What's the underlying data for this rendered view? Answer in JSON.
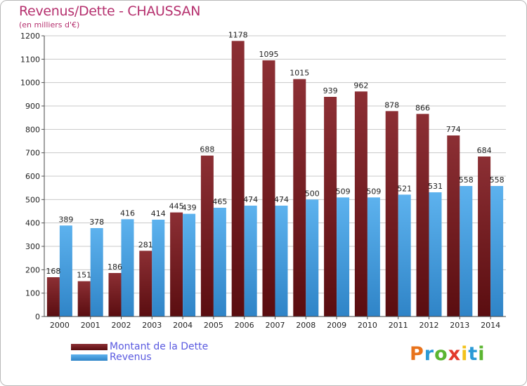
{
  "header": {
    "title": "Revenus/Dette - CHAUSSAN",
    "subtitle": "(en milliers d'€)"
  },
  "chart_data": {
    "type": "bar",
    "categories": [
      "2000",
      "2001",
      "2002",
      "2003",
      "2004",
      "2005",
      "2006",
      "2007",
      "2008",
      "2009",
      "2010",
      "2011",
      "2012",
      "2013",
      "2014"
    ],
    "series": [
      {
        "name": "Montant de la Dette",
        "color": "#7a1f22",
        "values": [
          168,
          151,
          186,
          281,
          445,
          688,
          1178,
          1095,
          1015,
          939,
          962,
          878,
          866,
          774,
          684
        ]
      },
      {
        "name": "Revenus",
        "color": "#4aa3e6",
        "values": [
          389,
          378,
          416,
          414,
          439,
          465,
          474,
          474,
          500,
          509,
          509,
          521,
          531,
          558,
          558
        ]
      }
    ],
    "yticks": [
      0,
      100,
      200,
      300,
      400,
      500,
      600,
      700,
      800,
      900,
      1000,
      1100,
      1200
    ],
    "ylim": [
      0,
      1200
    ],
    "grid": true,
    "legend_position": "bottom-left"
  },
  "logo": {
    "letters": [
      "P",
      "r",
      "o",
      "x",
      "i",
      "t",
      "i"
    ],
    "colors": [
      "#e8731c",
      "#2a9ad6",
      "#5bb531",
      "#e23a2c",
      "#f2c21b",
      "#2a9ad6",
      "#5bb531"
    ]
  }
}
